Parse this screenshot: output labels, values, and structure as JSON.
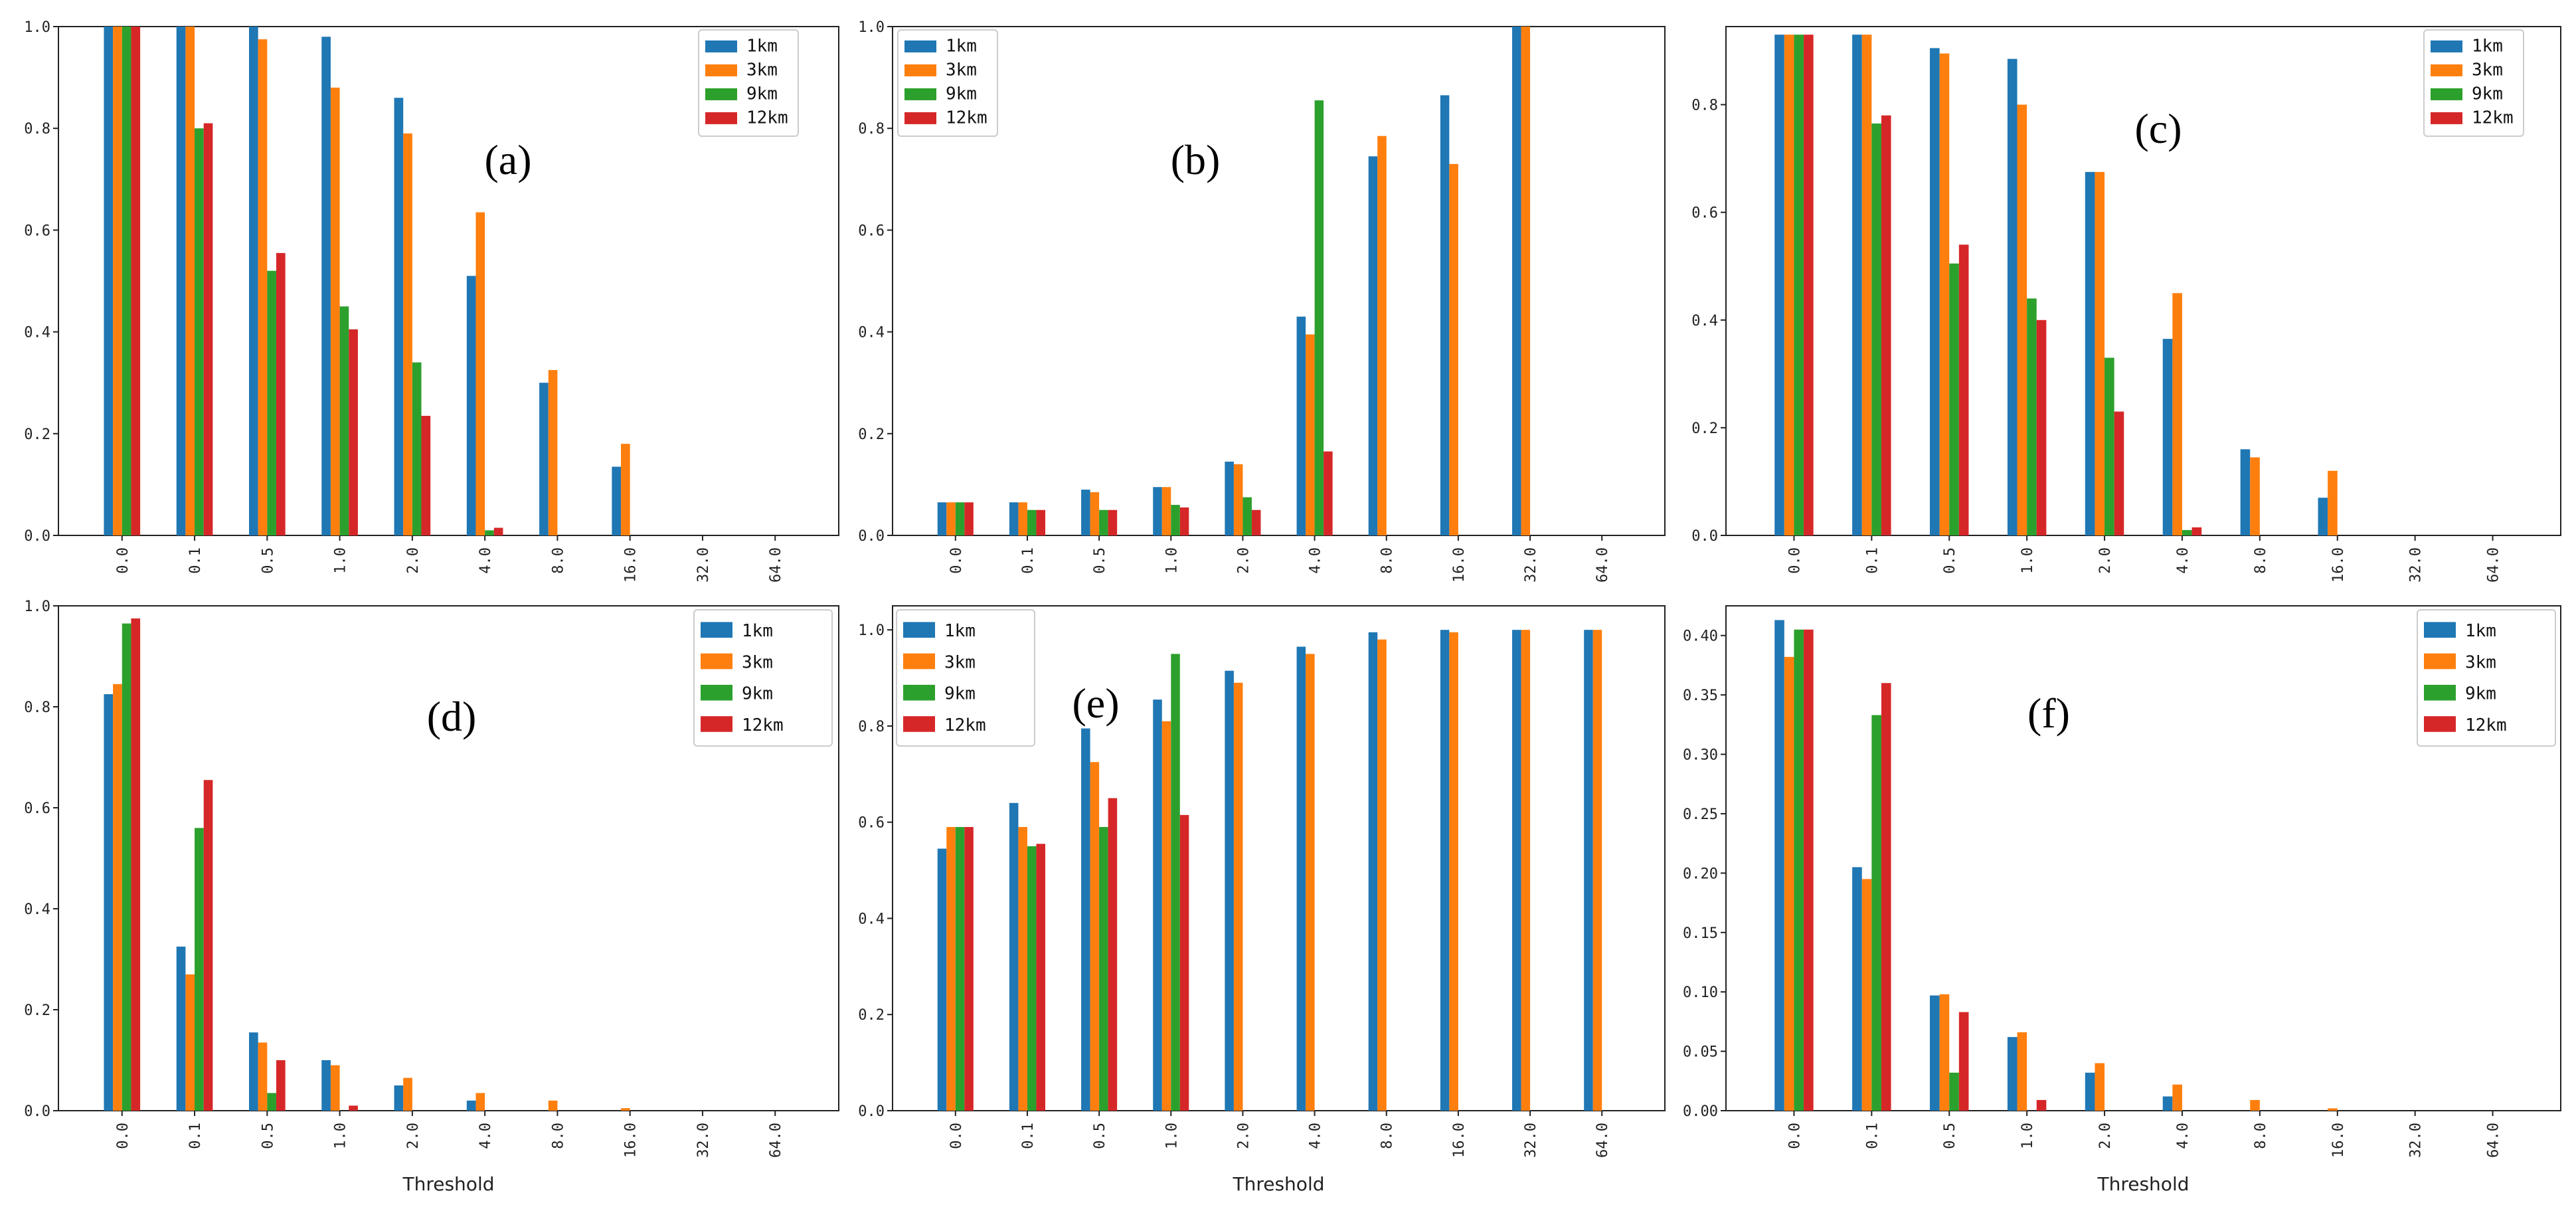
{
  "series_names": [
    "1km",
    "3km",
    "9km",
    "12km"
  ],
  "colors": [
    "#1f77b4",
    "#ff7f0e",
    "#2ca02c",
    "#d62728"
  ],
  "chart_data": [
    {
      "type": "bar",
      "panel": "(a)",
      "xlabel": "",
      "ylim": [
        0,
        1.0
      ],
      "yticks": [
        0.0,
        0.2,
        0.4,
        0.6,
        0.8,
        1.0
      ],
      "ytick_labels": [
        "0.0",
        "0.2",
        "0.4",
        "0.6",
        "0.8",
        "1.0"
      ],
      "legend_position": "top-right",
      "categories": [
        "0.0",
        "0.1",
        "0.5",
        "1.0",
        "2.0",
        "4.0",
        "8.0",
        "16.0",
        "32.0",
        "64.0"
      ],
      "series": [
        {
          "name": "1km",
          "values": [
            1.0,
            1.0,
            1.0,
            0.98,
            0.86,
            0.51,
            0.3,
            0.135,
            0,
            0
          ]
        },
        {
          "name": "3km",
          "values": [
            1.0,
            1.0,
            0.975,
            0.88,
            0.79,
            0.635,
            0.325,
            0.18,
            0,
            0
          ]
        },
        {
          "name": "9km",
          "values": [
            1.0,
            0.8,
            0.52,
            0.45,
            0.34,
            0.01,
            0,
            0,
            0,
            0
          ]
        },
        {
          "name": "12km",
          "values": [
            1.0,
            0.81,
            0.555,
            0.405,
            0.235,
            0.015,
            0,
            0,
            0,
            0
          ]
        }
      ]
    },
    {
      "type": "bar",
      "panel": "(b)",
      "xlabel": "",
      "ylim": [
        0,
        1.0
      ],
      "yticks": [
        0.0,
        0.2,
        0.4,
        0.6,
        0.8,
        1.0
      ],
      "ytick_labels": [
        "0.0",
        "0.2",
        "0.4",
        "0.6",
        "0.8",
        "1.0"
      ],
      "legend_position": "top-left",
      "categories": [
        "0.0",
        "0.1",
        "0.5",
        "1.0",
        "2.0",
        "4.0",
        "8.0",
        "16.0",
        "32.0",
        "64.0"
      ],
      "series": [
        {
          "name": "1km",
          "values": [
            0.065,
            0.065,
            0.09,
            0.095,
            0.145,
            0.43,
            0.745,
            0.865,
            1.0,
            0
          ]
        },
        {
          "name": "3km",
          "values": [
            0.065,
            0.065,
            0.085,
            0.095,
            0.14,
            0.395,
            0.785,
            0.73,
            1.0,
            0
          ]
        },
        {
          "name": "9km",
          "values": [
            0.065,
            0.05,
            0.05,
            0.06,
            0.075,
            0.855,
            0,
            0,
            0,
            0
          ]
        },
        {
          "name": "12km",
          "values": [
            0.065,
            0.05,
            0.05,
            0.055,
            0.05,
            0.165,
            0,
            0,
            0,
            0
          ]
        }
      ]
    },
    {
      "type": "bar",
      "panel": "(c)",
      "xlabel": "",
      "ylim": [
        0,
        0.945
      ],
      "yticks": [
        0.0,
        0.2,
        0.4,
        0.6,
        0.8
      ],
      "ytick_labels": [
        "0.0",
        "0.2",
        "0.4",
        "0.6",
        "0.8"
      ],
      "legend_position": "top-right",
      "categories": [
        "0.0",
        "0.1",
        "0.5",
        "1.0",
        "2.0",
        "4.0",
        "8.0",
        "16.0",
        "32.0",
        "64.0"
      ],
      "series": [
        {
          "name": "1km",
          "values": [
            0.93,
            0.93,
            0.905,
            0.885,
            0.675,
            0.365,
            0.16,
            0.07,
            0,
            0
          ]
        },
        {
          "name": "3km",
          "values": [
            0.93,
            0.93,
            0.895,
            0.8,
            0.675,
            0.45,
            0.145,
            0.12,
            0,
            0
          ]
        },
        {
          "name": "9km",
          "values": [
            0.93,
            0.765,
            0.505,
            0.44,
            0.33,
            0.01,
            0,
            0,
            0,
            0
          ]
        },
        {
          "name": "12km",
          "values": [
            0.93,
            0.78,
            0.54,
            0.4,
            0.23,
            0.015,
            0,
            0,
            0,
            0
          ]
        }
      ]
    },
    {
      "type": "bar",
      "panel": "(d)",
      "xlabel": "Threshold",
      "ylim": [
        0,
        1.0
      ],
      "yticks": [
        0.0,
        0.2,
        0.4,
        0.6,
        0.8,
        1.0
      ],
      "ytick_labels": [
        "0.0",
        "0.2",
        "0.4",
        "0.6",
        "0.8",
        "1.0"
      ],
      "legend_position": "top-right",
      "categories": [
        "0.0",
        "0.1",
        "0.5",
        "1.0",
        "2.0",
        "4.0",
        "8.0",
        "16.0",
        "32.0",
        "64.0"
      ],
      "series": [
        {
          "name": "1km",
          "values": [
            0.825,
            0.325,
            0.155,
            0.1,
            0.05,
            0.02,
            0,
            0,
            0,
            0
          ]
        },
        {
          "name": "3km",
          "values": [
            0.845,
            0.27,
            0.135,
            0.09,
            0.065,
            0.035,
            0.02,
            0.005,
            0,
            0
          ]
        },
        {
          "name": "9km",
          "values": [
            0.965,
            0.56,
            0.035,
            0,
            0,
            0,
            0,
            0,
            0,
            0
          ]
        },
        {
          "name": "12km",
          "values": [
            0.975,
            0.655,
            0.1,
            0.01,
            0,
            0,
            0,
            0,
            0,
            0
          ]
        }
      ]
    },
    {
      "type": "bar",
      "panel": "(e)",
      "xlabel": "Threshold",
      "ylim": [
        0,
        1.05
      ],
      "yticks": [
        0.0,
        0.2,
        0.4,
        0.6,
        0.8,
        1.0
      ],
      "ytick_labels": [
        "0.0",
        "0.2",
        "0.4",
        "0.6",
        "0.8",
        "1.0"
      ],
      "legend_position": "top-left",
      "categories": [
        "0.0",
        "0.1",
        "0.5",
        "1.0",
        "2.0",
        "4.0",
        "8.0",
        "16.0",
        "32.0",
        "64.0"
      ],
      "series": [
        {
          "name": "1km",
          "values": [
            0.545,
            0.64,
            0.795,
            0.855,
            0.915,
            0.965,
            0.995,
            1.0,
            1.0,
            1.0
          ]
        },
        {
          "name": "3km",
          "values": [
            0.59,
            0.59,
            0.725,
            0.81,
            0.89,
            0.95,
            0.98,
            0.995,
            1.0,
            1.0
          ]
        },
        {
          "name": "9km",
          "values": [
            0.59,
            0.55,
            0.59,
            0.95,
            0,
            0,
            0,
            0,
            0,
            0
          ]
        },
        {
          "name": "12km",
          "values": [
            0.59,
            0.555,
            0.65,
            0.615,
            0,
            0,
            0,
            0,
            0,
            0
          ]
        }
      ]
    },
    {
      "type": "bar",
      "panel": "(f)",
      "xlabel": "Threshold",
      "ylim": [
        0,
        0.425
      ],
      "yticks": [
        0.0,
        0.05,
        0.1,
        0.15,
        0.2,
        0.25,
        0.3,
        0.35,
        0.4
      ],
      "ytick_labels": [
        "0.00",
        "0.05",
        "0.10",
        "0.15",
        "0.20",
        "0.25",
        "0.30",
        "0.35",
        "0.40"
      ],
      "legend_position": "top-right",
      "categories": [
        "0.0",
        "0.1",
        "0.5",
        "1.0",
        "2.0",
        "4.0",
        "8.0",
        "16.0",
        "32.0",
        "64.0"
      ],
      "series": [
        {
          "name": "1km",
          "values": [
            0.413,
            0.205,
            0.097,
            0.062,
            0.032,
            0.012,
            0,
            0,
            0,
            0
          ]
        },
        {
          "name": "3km",
          "values": [
            0.382,
            0.195,
            0.098,
            0.066,
            0.04,
            0.022,
            0.009,
            0.002,
            0,
            0
          ]
        },
        {
          "name": "9km",
          "values": [
            0.405,
            0.333,
            0.032,
            0,
            0,
            0,
            0,
            0,
            0,
            0
          ]
        },
        {
          "name": "12km",
          "values": [
            0.405,
            0.36,
            0.083,
            0.009,
            0,
            0,
            0,
            0,
            0,
            0
          ]
        }
      ]
    }
  ]
}
